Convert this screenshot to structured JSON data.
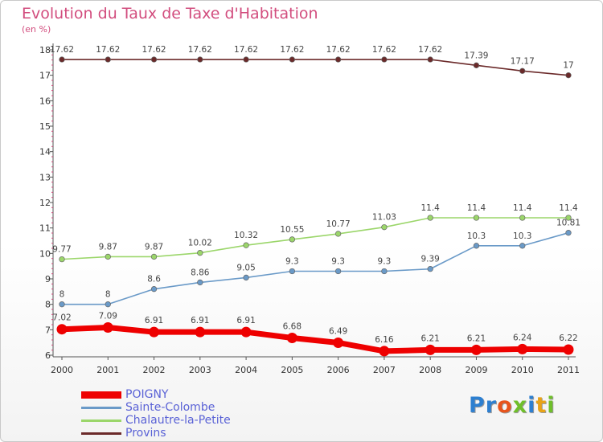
{
  "title": "Evolution du Taux de Taxe d'Habitation",
  "subtitle": "(en %)",
  "logo": {
    "letters": [
      "P",
      "r",
      "o",
      "x",
      "i",
      "t",
      "i"
    ],
    "colors": [
      "#2d7fd0",
      "#2d7fd0",
      "#e8541c",
      "#6fbf2a",
      "#2d7fd0",
      "#e8a317",
      "#6fbf2a"
    ]
  },
  "chart_data": {
    "type": "line",
    "title": "Evolution du Taux de Taxe d'Habitation",
    "ylabel": "(en %)",
    "xlabel": "",
    "x": [
      "2000",
      "2001",
      "2002",
      "2003",
      "2004",
      "2005",
      "2006",
      "2007",
      "2008",
      "2009",
      "2010",
      "2011"
    ],
    "ylim": [
      6,
      18
    ],
    "yticks": [
      6,
      7,
      8,
      9,
      10,
      11,
      12,
      13,
      14,
      15,
      16,
      17,
      18
    ],
    "grid": false,
    "legend": "bottom-left",
    "series": [
      {
        "name": "Provins",
        "color": "#6b2a2a",
        "values": [
          17.62,
          17.62,
          17.62,
          17.62,
          17.62,
          17.62,
          17.62,
          17.62,
          17.62,
          17.39,
          17.17,
          17
        ],
        "labels": [
          "17.62",
          "17.62",
          "17.62",
          "17.62",
          "17.62",
          "17.62",
          "17.62",
          "17.62",
          "17.62",
          "17.39",
          "17.17",
          "17"
        ]
      },
      {
        "name": "Chalautre-la-Petite",
        "color": "#9bd66a",
        "values": [
          9.77,
          9.87,
          9.87,
          10.02,
          10.32,
          10.55,
          10.77,
          11.03,
          11.4,
          11.4,
          11.4,
          11.4
        ],
        "labels": [
          "9.77",
          "9.87",
          "9.87",
          "10.02",
          "10.32",
          "10.55",
          "10.77",
          "11.03",
          "11.4",
          "11.4",
          "11.4",
          "11.4"
        ]
      },
      {
        "name": "Sainte-Colombe",
        "color": "#6a9ac8",
        "values": [
          8,
          8,
          8.6,
          8.86,
          9.05,
          9.3,
          9.3,
          9.3,
          9.39,
          10.3,
          10.3,
          10.81
        ],
        "labels": [
          "8",
          "8",
          "8.6",
          "8.86",
          "9.05",
          "9.3",
          "9.3",
          "9.3",
          "9.39",
          "10.3",
          "10.3",
          "10.81"
        ]
      },
      {
        "name": "POIGNY",
        "color": "#ee0000",
        "values": [
          7.02,
          7.09,
          6.91,
          6.91,
          6.91,
          6.68,
          6.49,
          6.16,
          6.21,
          6.21,
          6.24,
          6.22
        ],
        "labels": [
          "7.02",
          "7.09",
          "6.91",
          "6.91",
          "6.91",
          "6.68",
          "6.49",
          "6.16",
          "6.21",
          "6.21",
          "6.24",
          "6.22"
        ]
      }
    ],
    "legend_order": [
      "POIGNY",
      "Sainte-Colombe",
      "Chalautre-la-Petite",
      "Provins"
    ]
  }
}
